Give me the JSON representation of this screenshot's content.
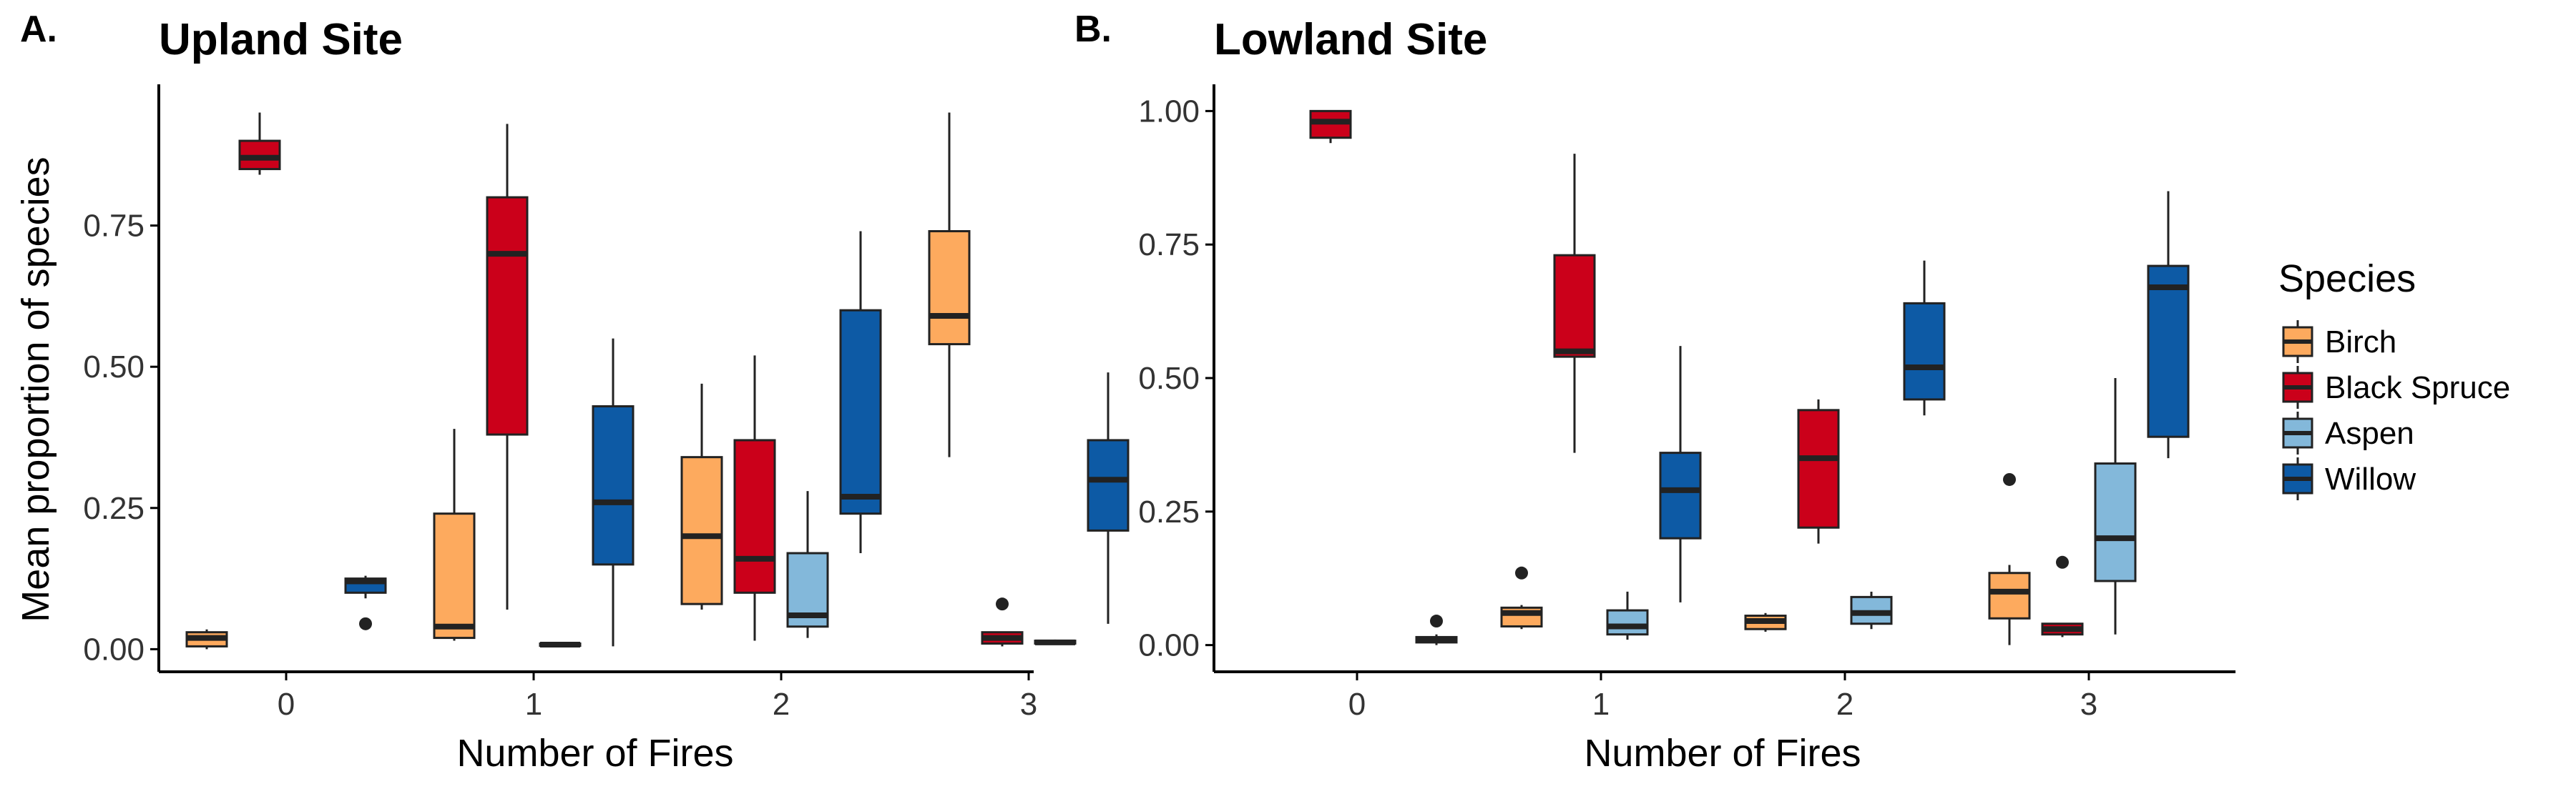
{
  "chart_data": [
    {
      "type": "box",
      "panel_label": "A.",
      "title": "Upland Site",
      "xlabel": "Number of Fires",
      "ylabel": "Mean proportion of species",
      "categories": [
        "0",
        "1",
        "2",
        "3"
      ],
      "yticks": [
        "0.00",
        "0.25",
        "0.50",
        "0.75"
      ],
      "ylim": [
        -0.04,
        1.0
      ],
      "series": [
        {
          "name": "Birch",
          "boxes": [
            {
              "x": "0",
              "min": 0.0,
              "q1": 0.005,
              "median": 0.02,
              "q3": 0.03,
              "max": 0.035,
              "outliers": []
            },
            {
              "x": "1",
              "min": 0.015,
              "q1": 0.02,
              "median": 0.04,
              "q3": 0.24,
              "max": 0.39,
              "outliers": []
            },
            {
              "x": "2",
              "min": 0.07,
              "q1": 0.08,
              "median": 0.2,
              "q3": 0.34,
              "max": 0.47,
              "outliers": []
            },
            {
              "x": "3",
              "min": 0.34,
              "q1": 0.54,
              "median": 0.59,
              "q3": 0.74,
              "max": 0.95,
              "outliers": []
            }
          ]
        },
        {
          "name": "Black Spruce",
          "boxes": [
            {
              "x": "0",
              "min": 0.84,
              "q1": 0.85,
              "median": 0.87,
              "q3": 0.9,
              "max": 0.95,
              "outliers": []
            },
            {
              "x": "1",
              "min": 0.07,
              "q1": 0.38,
              "median": 0.7,
              "q3": 0.8,
              "max": 0.93,
              "outliers": []
            },
            {
              "x": "2",
              "min": 0.015,
              "q1": 0.1,
              "median": 0.16,
              "q3": 0.37,
              "max": 0.52,
              "outliers": []
            },
            {
              "x": "3",
              "min": 0.005,
              "q1": 0.01,
              "median": 0.02,
              "q3": 0.03,
              "max": 0.03,
              "outliers": [
                0.08
              ]
            }
          ]
        },
        {
          "name": "Aspen",
          "boxes": [
            {
              "x": "1",
              "min": 0.005,
              "q1": 0.006,
              "median": 0.008,
              "q3": 0.01,
              "max": 0.012,
              "outliers": []
            },
            {
              "x": "2",
              "min": 0.02,
              "q1": 0.04,
              "median": 0.06,
              "q3": 0.17,
              "max": 0.28,
              "outliers": []
            },
            {
              "x": "3",
              "min": 0.008,
              "q1": 0.01,
              "median": 0.012,
              "q3": 0.015,
              "max": 0.017,
              "outliers": []
            }
          ]
        },
        {
          "name": "Willow",
          "boxes": [
            {
              "x": "0",
              "min": 0.09,
              "q1": 0.1,
              "median": 0.12,
              "q3": 0.125,
              "max": 0.13,
              "outliers": [
                0.045
              ]
            },
            {
              "x": "1",
              "min": 0.005,
              "q1": 0.15,
              "median": 0.26,
              "q3": 0.43,
              "max": 0.55,
              "outliers": []
            },
            {
              "x": "2",
              "min": 0.17,
              "q1": 0.24,
              "median": 0.27,
              "q3": 0.6,
              "max": 0.74,
              "outliers": []
            },
            {
              "x": "3",
              "min": 0.045,
              "q1": 0.21,
              "median": 0.3,
              "q3": 0.37,
              "max": 0.49,
              "outliers": []
            }
          ]
        }
      ]
    },
    {
      "type": "box",
      "panel_label": "B.",
      "title": "Lowland Site",
      "xlabel": "Number of Fires",
      "ylabel": "",
      "categories": [
        "0",
        "1",
        "2",
        "3"
      ],
      "yticks": [
        "0.00",
        "0.25",
        "0.50",
        "0.75",
        "1.00"
      ],
      "ylim": [
        -0.05,
        1.05
      ],
      "series": [
        {
          "name": "Birch",
          "boxes": [
            {
              "x": "1",
              "min": 0.03,
              "q1": 0.035,
              "median": 0.06,
              "q3": 0.07,
              "max": 0.075,
              "outliers": [
                0.135
              ]
            },
            {
              "x": "2",
              "min": 0.025,
              "q1": 0.03,
              "median": 0.045,
              "q3": 0.055,
              "max": 0.06,
              "outliers": []
            },
            {
              "x": "3",
              "min": 0.0,
              "q1": 0.05,
              "median": 0.1,
              "q3": 0.135,
              "max": 0.15,
              "outliers": [
                0.31
              ]
            }
          ]
        },
        {
          "name": "Black Spruce",
          "boxes": [
            {
              "x": "0",
              "min": 0.94,
              "q1": 0.95,
              "median": 0.98,
              "q3": 1.0,
              "max": 1.0,
              "outliers": []
            },
            {
              "x": "1",
              "min": 0.36,
              "q1": 0.54,
              "median": 0.55,
              "q3": 0.73,
              "max": 0.92,
              "outliers": []
            },
            {
              "x": "2",
              "min": 0.19,
              "q1": 0.22,
              "median": 0.35,
              "q3": 0.44,
              "max": 0.46,
              "outliers": []
            },
            {
              "x": "3",
              "min": 0.015,
              "q1": 0.02,
              "median": 0.03,
              "q3": 0.04,
              "max": 0.04,
              "outliers": [
                0.155
              ]
            }
          ]
        },
        {
          "name": "Aspen",
          "boxes": [
            {
              "x": "1",
              "min": 0.01,
              "q1": 0.02,
              "median": 0.035,
              "q3": 0.065,
              "max": 0.1,
              "outliers": []
            },
            {
              "x": "2",
              "min": 0.03,
              "q1": 0.04,
              "median": 0.06,
              "q3": 0.09,
              "max": 0.1,
              "outliers": []
            },
            {
              "x": "3",
              "min": 0.02,
              "q1": 0.12,
              "median": 0.2,
              "q3": 0.34,
              "max": 0.5,
              "outliers": []
            }
          ]
        },
        {
          "name": "Willow",
          "boxes": [
            {
              "x": "0",
              "min": 0.0,
              "q1": 0.005,
              "median": 0.01,
              "q3": 0.015,
              "max": 0.02,
              "outliers": [
                0.045
              ]
            },
            {
              "x": "1",
              "min": 0.08,
              "q1": 0.2,
              "median": 0.29,
              "q3": 0.36,
              "max": 0.56,
              "outliers": []
            },
            {
              "x": "2",
              "min": 0.43,
              "q1": 0.46,
              "median": 0.52,
              "q3": 0.64,
              "max": 0.72,
              "outliers": []
            },
            {
              "x": "3",
              "min": 0.35,
              "q1": 0.39,
              "median": 0.67,
              "q3": 0.71,
              "max": 0.85,
              "outliers": []
            }
          ]
        }
      ]
    }
  ],
  "legend": {
    "title": "Species",
    "placement": "right",
    "items": [
      {
        "label": "Birch",
        "color": "#FDAA5E"
      },
      {
        "label": "Black Spruce",
        "color": "#CB001A"
      },
      {
        "label": "Aspen",
        "color": "#83B8DA"
      },
      {
        "label": "Willow",
        "color": "#0D5AA5"
      }
    ]
  },
  "colors": {
    "Birch": "#FDAA5E",
    "Black Spruce": "#CB001A",
    "Aspen": "#83B8DA",
    "Willow": "#0D5AA5",
    "outline": "#222222",
    "axis": "#000000"
  }
}
